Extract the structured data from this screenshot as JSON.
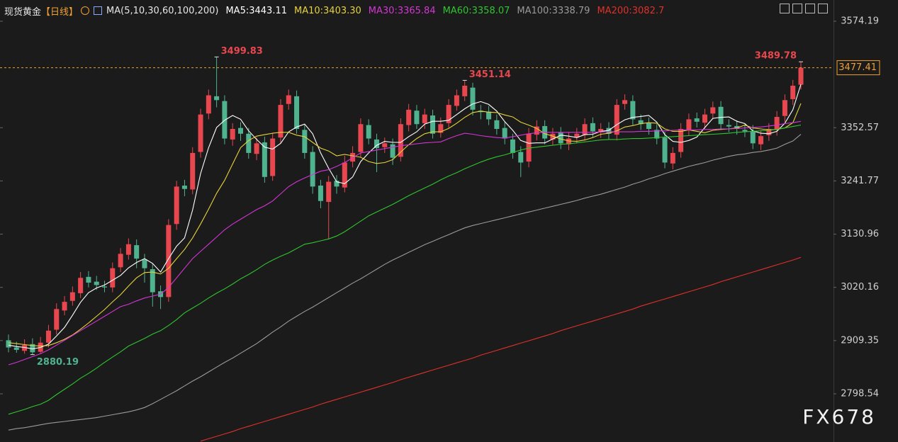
{
  "chart_data": {
    "type": "candlestick",
    "title": "现货黄金",
    "period": "【日线】",
    "indicator": "MA(5,10,30,60,100,200)",
    "watermark": "FX678",
    "up_color": "#e8474f",
    "down_color": "#4fb38f",
    "last_price_color": "#f0a030",
    "ylim": [
      2698.2,
      3618.4
    ],
    "yticks": [
      2798.54,
      2909.35,
      3020.16,
      3130.96,
      3241.77,
      3352.57,
      3574.19
    ],
    "open": [
      2910,
      2895,
      2888,
      2902,
      2886,
      2905,
      2932,
      2972,
      2992,
      3008,
      3042,
      3032,
      3022,
      3020,
      3062,
      3088,
      3108,
      3078,
      3058,
      3012,
      3000,
      3152,
      3232,
      3224,
      3302,
      3382,
      3418,
      3408,
      3328,
      3352,
      3340,
      3298,
      3322,
      3252,
      3332,
      3402,
      3418,
      3348,
      3302,
      3232,
      3198,
      3242,
      3228,
      3282,
      3302,
      3358,
      3328,
      3312,
      3318,
      3292,
      3358,
      3388,
      3362,
      3378,
      3342,
      3362,
      3398,
      3418,
      3436,
      3388,
      3386,
      3368,
      3352,
      3328,
      3302,
      3282,
      3338,
      3356,
      3328,
      3342,
      3318,
      3332,
      3338,
      3362,
      3343,
      3352,
      3338,
      3402,
      3408,
      3368,
      3362,
      3348,
      3332,
      3278,
      3302,
      3348,
      3372,
      3363,
      3382,
      3396,
      3358,
      3356,
      3348,
      3346,
      3318,
      3337,
      3348,
      3377,
      3412,
      3442
    ],
    "high": [
      2922,
      2907,
      2912,
      2914,
      2917,
      2942,
      2987,
      3002,
      3022,
      3052,
      3054,
      3044,
      3034,
      3072,
      3102,
      3122,
      3120,
      3090,
      3070,
      3024,
      3162,
      3242,
      3244,
      3312,
      3392,
      3432,
      3499.83,
      3420,
      3362,
      3364,
      3352,
      3332,
      3334,
      3342,
      3412,
      3432,
      3430,
      3360,
      3314,
      3244,
      3252,
      3254,
      3294,
      3314,
      3372,
      3370,
      3340,
      3332,
      3330,
      3372,
      3402,
      3400,
      3392,
      3390,
      3374,
      3412,
      3432,
      3451.14,
      3446,
      3400,
      3398,
      3380,
      3364,
      3340,
      3314,
      3352,
      3368,
      3368,
      3352,
      3354,
      3342,
      3352,
      3372,
      3374,
      3362,
      3364,
      3412,
      3422,
      3420,
      3380,
      3374,
      3360,
      3344,
      3312,
      3362,
      3382,
      3384,
      3392,
      3407,
      3408,
      3370,
      3368,
      3360,
      3358,
      3347,
      3362,
      3387,
      3422,
      3452,
      3489.78
    ],
    "low": [
      2885,
      2884,
      2882,
      2880.19,
      2883,
      2895,
      2922,
      2962,
      2982,
      2998,
      3020,
      3015,
      3010,
      3010,
      3052,
      3078,
      3060,
      3030,
      2980,
      2975,
      2990,
      3140,
      3210,
      3214,
      3290,
      3370,
      3395,
      3318,
      3315,
      3325,
      3288,
      3285,
      3238,
      3242,
      3320,
      3390,
      3340,
      3288,
      3215,
      3185,
      3120,
      3215,
      3218,
      3270,
      3292,
      3318,
      3260,
      3300,
      3275,
      3282,
      3345,
      3350,
      3350,
      3330,
      3332,
      3352,
      3388,
      3408,
      3378,
      3370,
      3358,
      3338,
      3318,
      3288,
      3250,
      3270,
      3326,
      3318,
      3316,
      3308,
      3306,
      3320,
      3326,
      3333,
      3331,
      3328,
      3326,
      3390,
      3358,
      3348,
      3338,
      3318,
      3268,
      3266,
      3290,
      3336,
      3353,
      3351,
      3370,
      3348,
      3343,
      3338,
      3333,
      3308,
      3306,
      3325,
      3336,
      3365,
      3400,
      3432
    ],
    "close": [
      2895,
      2890,
      2900,
      2885,
      2905,
      2930,
      2975,
      2990,
      3010,
      3040,
      3030,
      3025,
      3020,
      3060,
      3090,
      3110,
      3080,
      3060,
      3010,
      3000,
      3150,
      3230,
      3225,
      3300,
      3380,
      3420,
      3410,
      3330,
      3350,
      3340,
      3300,
      3320,
      3250,
      3330,
      3400,
      3420,
      3350,
      3300,
      3230,
      3200,
      3240,
      3230,
      3280,
      3300,
      3360,
      3330,
      3310,
      3320,
      3290,
      3360,
      3390,
      3360,
      3380,
      3340,
      3360,
      3400,
      3420,
      3440,
      3390,
      3385,
      3370,
      3350,
      3330,
      3300,
      3280,
      3340,
      3355,
      3330,
      3340,
      3320,
      3330,
      3340,
      3360,
      3345,
      3350,
      3340,
      3400,
      3410,
      3370,
      3360,
      3350,
      3330,
      3280,
      3300,
      3350,
      3370,
      3365,
      3380,
      3395,
      3360,
      3355,
      3350,
      3345,
      3320,
      3335,
      3350,
      3375,
      3410,
      3440,
      3477.41
    ],
    "series": [
      {
        "name": "MA5:3443.11",
        "color": "#ffffff",
        "values": [
          2900,
          2897,
          2895,
          2892,
          2895,
          2902,
          2919,
          2937,
          2962,
          2989,
          3009,
          3019,
          3025,
          3035,
          3045,
          3061,
          3072,
          3080,
          3070,
          3052,
          3080,
          3106,
          3123,
          3181,
          3257,
          3311,
          3353,
          3368,
          3378,
          3370,
          3346,
          3328,
          3312,
          3308,
          3320,
          3344,
          3354,
          3360,
          3340,
          3300,
          3268,
          3240,
          3236,
          3250,
          3282,
          3300,
          3316,
          3324,
          3322,
          3322,
          3334,
          3344,
          3360,
          3366,
          3366,
          3368,
          3380,
          3392,
          3402,
          3407,
          3401,
          3387,
          3365,
          3347,
          3326,
          3320,
          3321,
          3321,
          3329,
          3337,
          3335,
          3332,
          3338,
          3339,
          3345,
          3347,
          3359,
          3369,
          3374,
          3376,
          3378,
          3364,
          3338,
          3324,
          3322,
          3326,
          3333,
          3353,
          3372,
          3374,
          3375,
          3366,
          3361,
          3346,
          3341,
          3340,
          3345,
          3362,
          3390,
          3443.11
        ]
      },
      {
        "name": "MA10:3403.30",
        "color": "#e6d23a",
        "values": [
          2905,
          2903,
          2901,
          2899,
          2898,
          2899,
          2905,
          2912,
          2921,
          2933,
          2946,
          2960,
          2974,
          2990,
          3005,
          3023,
          3040,
          3051,
          3052,
          3048,
          3060,
          3080,
          3099,
          3123,
          3152,
          3183,
          3216,
          3243,
          3277,
          3311,
          3326,
          3335,
          3338,
          3341,
          3343,
          3343,
          3337,
          3334,
          3322,
          3310,
          3304,
          3294,
          3297,
          3294,
          3291,
          3282,
          3278,
          3280,
          3286,
          3302,
          3317,
          3330,
          3340,
          3344,
          3344,
          3351,
          3362,
          3374,
          3384,
          3387,
          3385,
          3384,
          3379,
          3375,
          3364,
          3358,
          3351,
          3340,
          3335,
          3329,
          3325,
          3324,
          3327,
          3332,
          3339,
          3341,
          3346,
          3354,
          3357,
          3361,
          3363,
          3362,
          3350,
          3345,
          3345,
          3348,
          3345,
          3342,
          3347,
          3349,
          3350,
          3352,
          3358,
          3352,
          3350,
          3348,
          3349,
          3352,
          3363,
          3403.3
        ]
      },
      {
        "name": "MA30:3365.84",
        "color": "#d535d5",
        "values": [
          2859,
          2864,
          2870,
          2876,
          2882,
          2890,
          2900,
          2910,
          2920,
          2930,
          2940,
          2950,
          2960,
          2970,
          2980,
          2985,
          2992,
          2998,
          3002,
          3006,
          3020,
          3040,
          3060,
          3080,
          3095,
          3110,
          3125,
          3140,
          3152,
          3162,
          3172,
          3182,
          3190,
          3200,
          3215,
          3230,
          3240,
          3248,
          3255,
          3262,
          3265,
          3272,
          3280,
          3290,
          3300,
          3303,
          3306,
          3309,
          3312,
          3315,
          3317,
          3319,
          3321,
          3322,
          3323,
          3330,
          3336,
          3341,
          3339,
          3336,
          3334,
          3332,
          3331,
          3334,
          3337,
          3340,
          3342,
          3343,
          3343,
          3343,
          3343,
          3343,
          3343,
          3343,
          3344,
          3344,
          3344,
          3344,
          3344,
          3345,
          3345,
          3346,
          3346,
          3347,
          3348,
          3348,
          3348,
          3349,
          3349,
          3350,
          3350,
          3351,
          3352,
          3353,
          3354,
          3356,
          3358,
          3361,
          3363,
          3365.84
        ]
      },
      {
        "name": "MA60:3358.07",
        "color": "#2fc52f",
        "values": [
          2756,
          2761,
          2766,
          2772,
          2777,
          2785,
          2797,
          2808,
          2819,
          2831,
          2841,
          2852,
          2864,
          2875,
          2886,
          2898,
          2906,
          2914,
          2923,
          2930,
          2941,
          2953,
          2967,
          2977,
          2987,
          2998,
          3008,
          3017,
          3027,
          3038,
          3047,
          3057,
          3068,
          3077,
          3085,
          3092,
          3101,
          3110,
          3113,
          3117,
          3121,
          3127,
          3136,
          3147,
          3158,
          3169,
          3177,
          3185,
          3193,
          3202,
          3211,
          3219,
          3227,
          3235,
          3244,
          3252,
          3259,
          3267,
          3274,
          3281,
          3287,
          3292,
          3296,
          3301,
          3306,
          3310,
          3312,
          3314,
          3316,
          3318,
          3319,
          3321,
          3323,
          3325,
          3327,
          3328,
          3328,
          3329,
          3330,
          3330,
          3331,
          3332,
          3333,
          3334,
          3335,
          3336,
          3337,
          3338,
          3339,
          3340,
          3341,
          3343,
          3344,
          3345,
          3346,
          3347,
          3349,
          3352,
          3355,
          3358.07
        ]
      },
      {
        "name": "MA100:3338.79",
        "color": "#9a9a9a",
        "values": [
          2723,
          2726,
          2728,
          2731,
          2734,
          2737,
          2739,
          2741,
          2743,
          2745,
          2747,
          2749,
          2752,
          2755,
          2758,
          2761,
          2765,
          2770,
          2778,
          2787,
          2796,
          2805,
          2815,
          2825,
          2834,
          2844,
          2854,
          2864,
          2873,
          2883,
          2893,
          2903,
          2915,
          2927,
          2938,
          2950,
          2960,
          2970,
          2979,
          2989,
          2999,
          3009,
          3019,
          3029,
          3038,
          3048,
          3058,
          3068,
          3077,
          3085,
          3093,
          3101,
          3109,
          3116,
          3123,
          3130,
          3137,
          3144,
          3149,
          3153,
          3157,
          3161,
          3165,
          3169,
          3173,
          3177,
          3181,
          3185,
          3189,
          3193,
          3197,
          3201,
          3206,
          3210,
          3214,
          3219,
          3224,
          3229,
          3235,
          3240,
          3246,
          3251,
          3257,
          3262,
          3267,
          3272,
          3276,
          3280,
          3285,
          3289,
          3293,
          3296,
          3298,
          3301,
          3303,
          3306,
          3310,
          3318,
          3325,
          3338.79
        ]
      },
      {
        "name": "MA200:3082.7",
        "color": "#e0302a",
        "values": [
          null,
          null,
          null,
          null,
          null,
          null,
          null,
          null,
          null,
          null,
          null,
          null,
          null,
          null,
          null,
          null,
          null,
          null,
          null,
          null,
          null,
          null,
          null,
          null,
          2700,
          2705,
          2710,
          2715,
          2720,
          2726,
          2731,
          2736,
          2741,
          2746,
          2751,
          2756,
          2761,
          2766,
          2771,
          2777,
          2782,
          2787,
          2792,
          2797,
          2802,
          2807,
          2812,
          2817,
          2822,
          2828,
          2833,
          2838,
          2843,
          2848,
          2853,
          2858,
          2863,
          2868,
          2873,
          2879,
          2884,
          2889,
          2894,
          2899,
          2904,
          2909,
          2914,
          2919,
          2924,
          2930,
          2935,
          2940,
          2945,
          2950,
          2955,
          2960,
          2965,
          2970,
          2975,
          2981,
          2986,
          2991,
          2996,
          3001,
          3006,
          3011,
          3016,
          3021,
          3026,
          3032,
          3037,
          3042,
          3047,
          3052,
          3057,
          3062,
          3067,
          3072,
          3077,
          3082.7
        ]
      }
    ]
  }
}
